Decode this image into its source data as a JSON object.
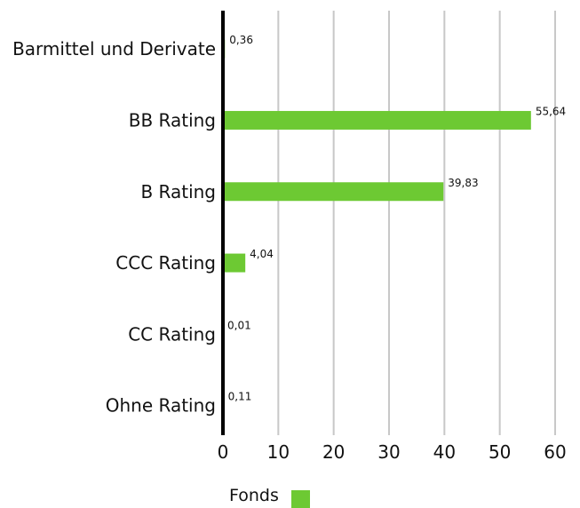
{
  "chart_data": {
    "type": "bar",
    "orientation": "horizontal",
    "categories": [
      "Barmittel und Derivate",
      "BB Rating",
      "B Rating",
      "CCC Rating",
      "CC Rating",
      "Ohne Rating"
    ],
    "series": [
      {
        "name": "Fonds",
        "color": "#6dc933",
        "values": [
          0.36,
          55.64,
          39.83,
          4.04,
          0.01,
          0.11
        ],
        "value_labels": [
          "0,36",
          "55,64",
          "39,83",
          "4,04",
          "0,01",
          "0,11"
        ]
      }
    ],
    "xlim": [
      0,
      60
    ],
    "x_ticks": [
      0,
      10,
      20,
      30,
      40,
      50,
      60
    ],
    "x_tick_labels": [
      "0",
      "10",
      "20",
      "30",
      "40",
      "50",
      "60"
    ],
    "grid": true,
    "legend_position": "bottom-center"
  }
}
